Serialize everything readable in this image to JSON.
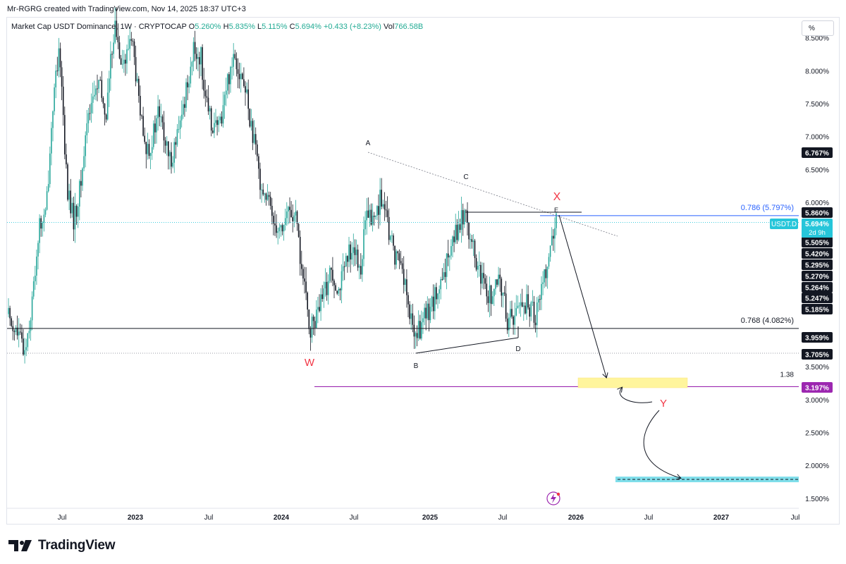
{
  "header": {
    "credit": "Mr-RGRG created with TradingView.com, Nov 14, 2025 18:37 UTC+3"
  },
  "legend": {
    "symbol": "Market Cap USDT Dominance, 1W · CRYPTOCAP",
    "o_label": "O",
    "o_value": "5.260%",
    "h_label": "H",
    "h_value": "5.835%",
    "l_label": "L",
    "l_value": "5.115%",
    "c_label": "C",
    "c_value": "5.694%",
    "change": "+0.433 (+8.23%)",
    "vol_label": "Vol",
    "vol_value": "766.58B"
  },
  "toolbar": {
    "scale_button": "%"
  },
  "chart_data": {
    "type": "candlestick",
    "symbol": "USDT.D",
    "y_axis": {
      "unit": "%",
      "range": [
        1.38,
        8.9
      ],
      "ticks": [
        "8.500%",
        "8.000%",
        "7.500%",
        "7.000%",
        "6.500%",
        "6.000%",
        "3.500%",
        "3.000%",
        "2.500%",
        "2.000%",
        "1.500%"
      ]
    },
    "x_axis": {
      "ticks": [
        "Jul",
        "2023",
        "Jul",
        "2024",
        "Jul",
        "2025",
        "Jul",
        "2026",
        "Jul",
        "2027",
        "Jul"
      ]
    },
    "candles_approx": [
      {
        "period": "2022 H1",
        "open": 4.2,
        "high": 5.6,
        "low": 3.75,
        "close": 5.4
      },
      {
        "period": "2022 Jul",
        "open": 5.7,
        "high": 8.6,
        "low": 5.7,
        "close": 7.6
      },
      {
        "period": "2022 Nov",
        "open": 8.0,
        "high": 8.9,
        "low": 7.7,
        "close": 8.3
      },
      {
        "period": "2023 Jan",
        "open": 7.7,
        "high": 8.1,
        "low": 6.5,
        "close": 6.9
      },
      {
        "period": "2023 Jul",
        "open": 7.0,
        "high": 8.5,
        "low": 6.6,
        "close": 8.1
      },
      {
        "period": "2023 Oct",
        "open": 8.0,
        "high": 8.6,
        "low": 7.4,
        "close": 7.6
      },
      {
        "period": "2024 Jan",
        "open": 6.6,
        "high": 6.7,
        "low": 5.5,
        "close": 5.6
      },
      {
        "period": "2024 Apr",
        "open": 5.2,
        "high": 5.4,
        "low": 3.75,
        "close": 4.05
      },
      {
        "period": "2024 Aug",
        "open": 5.0,
        "high": 6.77,
        "low": 4.8,
        "close": 5.9
      },
      {
        "period": "2024 Dec",
        "open": 4.6,
        "high": 4.7,
        "low": 3.8,
        "close": 4.2
      },
      {
        "period": "2025 Apr",
        "open": 5.3,
        "high": 6.25,
        "low": 5.1,
        "close": 5.5
      },
      {
        "period": "2025 Aug",
        "open": 4.3,
        "high": 4.5,
        "low": 4.05,
        "close": 4.2
      },
      {
        "period": "2025 Nov",
        "open": 5.26,
        "high": 5.835,
        "low": 5.115,
        "close": 5.694
      }
    ],
    "current_price": {
      "label": "USDT.D",
      "value": "5.694%",
      "countdown": "2d 9h"
    },
    "price_labels": [
      "6.767%",
      "5.860%",
      "5.505%",
      "5.420%",
      "5.295%",
      "5.270%",
      "5.264%",
      "5.247%",
      "5.185%",
      "3.959%",
      "3.705%",
      "3.197%"
    ],
    "levels": [
      {
        "name": "fib-0.786",
        "label": "0.786 (5.797%)",
        "value": 5.797,
        "color": "#2962ff"
      },
      {
        "name": "fib-0.768",
        "label": "0.768 (4.082%)",
        "value": 4.082,
        "color": "#131722"
      },
      {
        "name": "ext-1.38",
        "label": "1.38",
        "value": 3.197,
        "color": "#9c27b0"
      },
      {
        "name": "support-3.705",
        "value": 3.705,
        "color": "#787b86"
      }
    ],
    "wave_labels": [
      {
        "text": "A",
        "color": "#131722"
      },
      {
        "text": "B",
        "color": "#131722"
      },
      {
        "text": "C",
        "color": "#131722"
      },
      {
        "text": "D",
        "color": "#131722"
      },
      {
        "text": "E",
        "color": "#131722"
      },
      {
        "text": "W",
        "color": "#f23645"
      },
      {
        "text": "X",
        "color": "#f23645"
      },
      {
        "text": "Y",
        "color": "#f23645"
      }
    ],
    "target_zones": [
      {
        "name": "yellow-zone",
        "value": 3.25,
        "color": "#fff59d"
      },
      {
        "name": "cyan-zone",
        "value": 1.82,
        "color": "#80deea"
      }
    ],
    "colors": {
      "up": "#26a69a",
      "down": "#131722",
      "current": "#26c6da",
      "ext": "#9c27b0"
    }
  },
  "branding": {
    "name": "TradingView"
  }
}
